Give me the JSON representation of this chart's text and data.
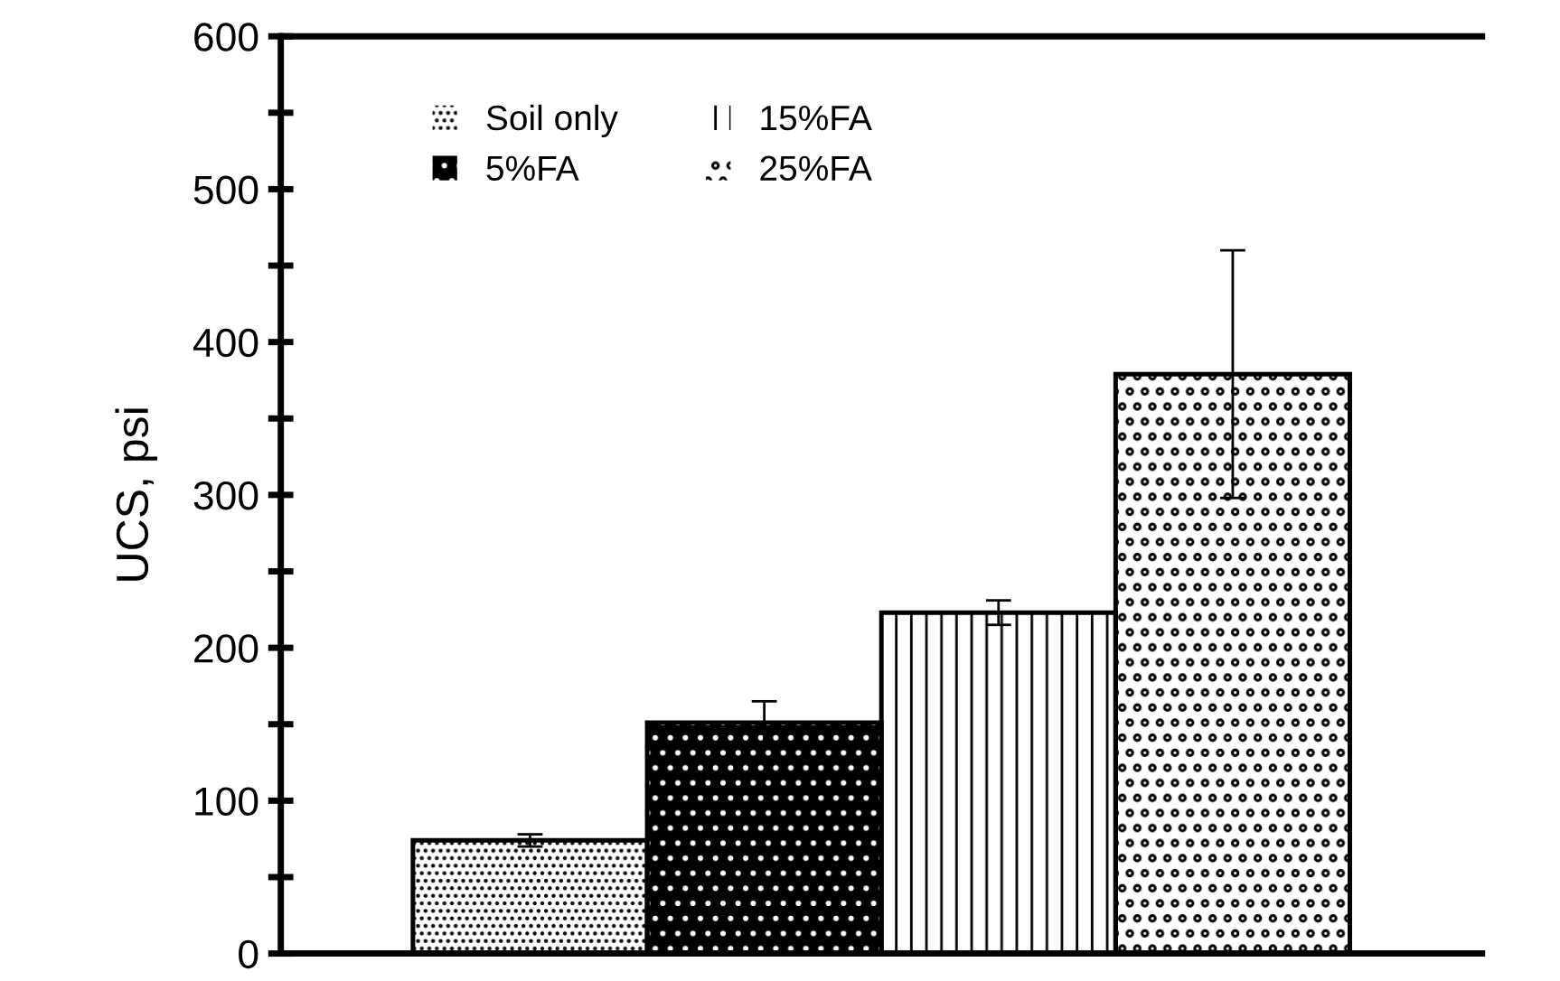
{
  "chart_data": {
    "type": "bar",
    "ylabel": "UCS, psi",
    "categories": [
      null
    ],
    "series": [
      {
        "name": "Soil only",
        "color": "#ffffff",
        "values": [
          74
        ],
        "errors": [
          4
        ]
      },
      {
        "name": "5%FA",
        "color": "#000000",
        "values": [
          151
        ],
        "errors": [
          14
        ]
      },
      {
        "name": "15%FA",
        "color": "#ffffff",
        "values": [
          223
        ],
        "errors": [
          8
        ]
      },
      {
        "name": "25%FA",
        "color": "#ffffff",
        "values": [
          379
        ],
        "errors": [
          81
        ]
      }
    ],
    "ylim": [
      0,
      600
    ],
    "yticks": [
      0,
      {
        "value": 50,
        "label": null
      },
      100,
      {
        "value": 150,
        "label": null
      },
      200,
      {
        "value": 250,
        "label": null
      },
      300,
      {
        "value": 350,
        "label": null
      },
      400,
      {
        "value": 450,
        "label": null
      },
      500,
      {
        "value": 550,
        "label": null
      },
      600
    ],
    "grid": false,
    "legend": "top left"
  }
}
